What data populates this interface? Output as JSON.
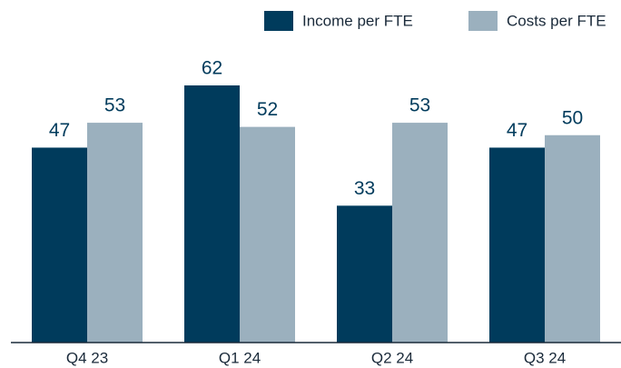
{
  "chart_data": {
    "type": "bar",
    "categories": [
      "Q4 23",
      "Q1 24",
      "Q2 24",
      "Q3 24"
    ],
    "series": [
      {
        "name": "Income per FTE",
        "color": "#003b5c",
        "values": [
          47,
          62,
          33,
          47
        ]
      },
      {
        "name": "Costs per FTE",
        "color": "#9bb0be",
        "values": [
          53,
          52,
          53,
          50
        ]
      }
    ],
    "legend": "top-right"
  }
}
